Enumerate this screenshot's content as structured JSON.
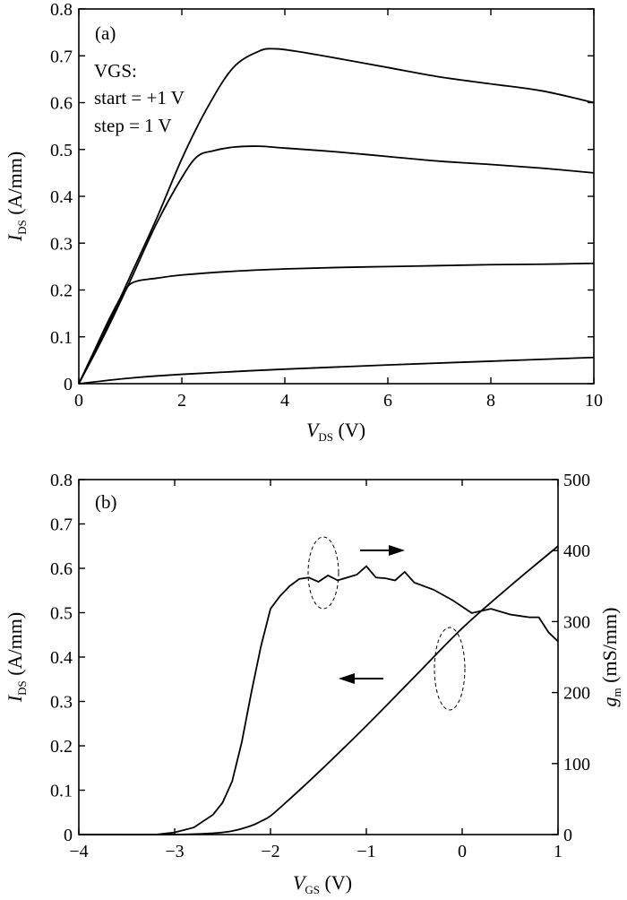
{
  "chart_data": [
    {
      "type": "line",
      "panel": "(a)",
      "xlabel": "V_DS (V)",
      "ylabel": "I_DS (A/mm)",
      "xlim": [
        0,
        10
      ],
      "ylim": [
        0,
        0.8
      ],
      "xticks": [
        0,
        2,
        4,
        6,
        8,
        10
      ],
      "yticks": [
        0,
        0.1,
        0.2,
        0.3,
        0.4,
        0.5,
        0.6,
        0.7,
        0.8
      ],
      "grid": false,
      "annotation": [
        "VGS:",
        "start = +1 V",
        "step = 1 V"
      ],
      "series": [
        {
          "x": [
            0,
            0.5,
            1.0,
            1.5,
            2.0,
            2.5,
            3.0,
            3.5,
            3.8,
            4.2,
            5.0,
            6.0,
            7.0,
            8.0,
            9.0,
            10.0
          ],
          "y": [
            0,
            0.11,
            0.23,
            0.35,
            0.48,
            0.59,
            0.675,
            0.71,
            0.715,
            0.71,
            0.695,
            0.675,
            0.655,
            0.64,
            0.625,
            0.6
          ]
        },
        {
          "x": [
            0,
            0.5,
            1.0,
            1.5,
            2.0,
            2.3,
            2.6,
            3.0,
            3.5,
            4.0,
            5.0,
            6.0,
            7.0,
            8.0,
            9.0,
            10.0
          ],
          "y": [
            0,
            0.105,
            0.22,
            0.34,
            0.44,
            0.485,
            0.497,
            0.505,
            0.507,
            0.503,
            0.495,
            0.485,
            0.475,
            0.468,
            0.46,
            0.45
          ]
        },
        {
          "x": [
            0,
            0.3,
            0.6,
            0.9,
            1.1,
            1.5,
            2.0,
            3.0,
            4.0,
            5.0,
            6.0,
            7.0,
            8.0,
            9.0,
            10.0
          ],
          "y": [
            0,
            0.07,
            0.14,
            0.2,
            0.218,
            0.225,
            0.232,
            0.24,
            0.245,
            0.248,
            0.25,
            0.252,
            0.254,
            0.255,
            0.257
          ]
        },
        {
          "x": [
            0,
            1,
            2,
            4,
            6,
            8,
            10
          ],
          "y": [
            0,
            0.012,
            0.02,
            0.031,
            0.04,
            0.048,
            0.056
          ]
        }
      ]
    },
    {
      "type": "line",
      "panel": "(b)",
      "xlabel": "V_GS (V)",
      "ylabel": "I_DS (A/mm)",
      "y2label": "g_m (mS/mm)",
      "xlim": [
        -4,
        1
      ],
      "ylim": [
        0,
        0.8
      ],
      "y2lim": [
        0,
        500
      ],
      "xticks": [
        -4,
        -3,
        -2,
        -1,
        0,
        1
      ],
      "yticks": [
        0,
        0.1,
        0.2,
        0.3,
        0.4,
        0.5,
        0.6,
        0.7,
        0.8
      ],
      "y2ticks": [
        0,
        100,
        200,
        300,
        400,
        500
      ],
      "grid": false,
      "series": [
        {
          "axis": "left",
          "x": [
            -4,
            -3.0,
            -2.6,
            -2.4,
            -2.2,
            -2.1,
            -2.0,
            -1.8,
            -1.5,
            -1.0,
            -0.5,
            0,
            0.5,
            1.0
          ],
          "y": [
            0,
            0,
            0.003,
            0.008,
            0.02,
            0.03,
            0.042,
            0.08,
            0.14,
            0.245,
            0.355,
            0.465,
            0.56,
            0.65
          ]
        },
        {
          "axis": "right",
          "x": [
            -4,
            -3.2,
            -3.0,
            -2.8,
            -2.6,
            -2.5,
            -2.4,
            -2.3,
            -2.2,
            -2.1,
            -2.0,
            -1.9,
            -1.8,
            -1.7,
            -1.6,
            -1.5,
            -1.4,
            -1.3,
            -1.2,
            -1.1,
            -1.0,
            -0.9,
            -0.8,
            -0.7,
            -0.6,
            -0.5,
            -0.3,
            -0.1,
            0.1,
            0.2,
            0.3,
            0.5,
            0.6,
            0.7,
            0.8,
            0.9,
            1.0
          ],
          "y": [
            0,
            0,
            3,
            10,
            28,
            45,
            75,
            130,
            200,
            265,
            318,
            336,
            350,
            360,
            362,
            356,
            365,
            358,
            362,
            366,
            378,
            362,
            361,
            358,
            370,
            355,
            345,
            330,
            312,
            315,
            318,
            310,
            308,
            306,
            306,
            285,
            272
          ]
        }
      ],
      "arrows": [
        {
          "direction": "right",
          "refers_to": "g_m"
        },
        {
          "direction": "left",
          "refers_to": "I_DS"
        }
      ]
    }
  ]
}
